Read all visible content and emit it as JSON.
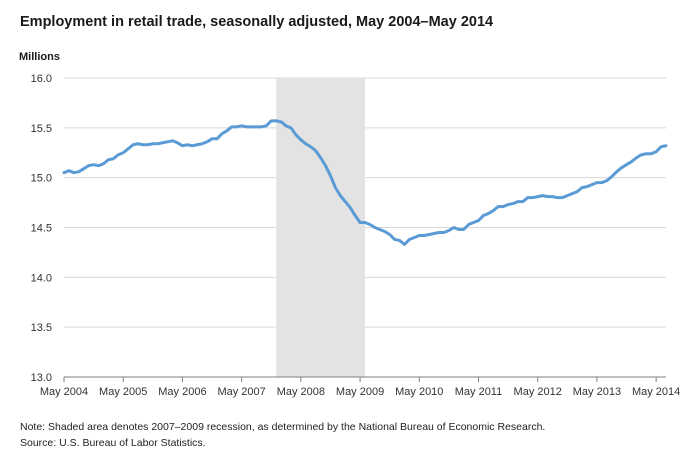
{
  "chart_data": {
    "type": "line",
    "title": "Employment in retail trade, seasonally adjusted, May 2004–May 2014",
    "ylabel": "Millions",
    "xlabel": "",
    "ylim": [
      13.0,
      16.0
    ],
    "yticks": [
      "16.0",
      "15.5",
      "15.0",
      "14.5",
      "14.0",
      "13.5",
      "13.0"
    ],
    "xticks": [
      "May 2004",
      "May 2005",
      "May 2006",
      "May 2007",
      "May 2008",
      "May 2009",
      "May 2010",
      "May 2011",
      "May 2012",
      "May 2013",
      "May 2014"
    ],
    "grid": true,
    "line_color": "#5b9bd5",
    "shade_color": "#e3e3e3",
    "recession_shade": {
      "start": "2007-12",
      "end": "2009-06"
    },
    "series": [
      {
        "x_start": "2004-05",
        "frequency": "monthly",
        "values": [
          15.05,
          15.07,
          15.05,
          15.06,
          15.09,
          15.12,
          15.13,
          15.12,
          15.14,
          15.18,
          15.19,
          15.23,
          15.25,
          15.29,
          15.33,
          15.34,
          15.33,
          15.33,
          15.34,
          15.34,
          15.35,
          15.36,
          15.37,
          15.35,
          15.32,
          15.33,
          15.32,
          15.33,
          15.34,
          15.36,
          15.39,
          15.39,
          15.44,
          15.47,
          15.51,
          15.51,
          15.52,
          15.51,
          15.51,
          15.51,
          15.51,
          15.52,
          15.57,
          15.57,
          15.56,
          15.52,
          15.5,
          15.43,
          15.38,
          15.34,
          15.31,
          15.27,
          15.2,
          15.12,
          15.02,
          14.9,
          14.82,
          14.76,
          14.7,
          14.62,
          14.55,
          14.55,
          14.53,
          14.5,
          14.48,
          14.46,
          14.43,
          14.38,
          14.37,
          14.33,
          14.38,
          14.4,
          14.42,
          14.42,
          14.43,
          14.44,
          14.45,
          14.45,
          14.47,
          14.5,
          14.48,
          14.48,
          14.53,
          14.55,
          14.57,
          14.62,
          14.64,
          14.67,
          14.71,
          14.71,
          14.73,
          14.74,
          14.76,
          14.76,
          14.8,
          14.8,
          14.81,
          14.82,
          14.81,
          14.81,
          14.8,
          14.8,
          14.82,
          14.84,
          14.86,
          14.9,
          14.91,
          14.93,
          14.95,
          14.95,
          14.97,
          15.01,
          15.06,
          15.1,
          15.13,
          15.16,
          15.2,
          15.23,
          15.24,
          15.24,
          15.26,
          15.31,
          15.32
        ]
      }
    ]
  },
  "note": "Note: Shaded area denotes 2007–2009 recession, as determined by the National Bureau of Economic Research.",
  "source": "Source: U.S. Bureau of Labor Statistics."
}
